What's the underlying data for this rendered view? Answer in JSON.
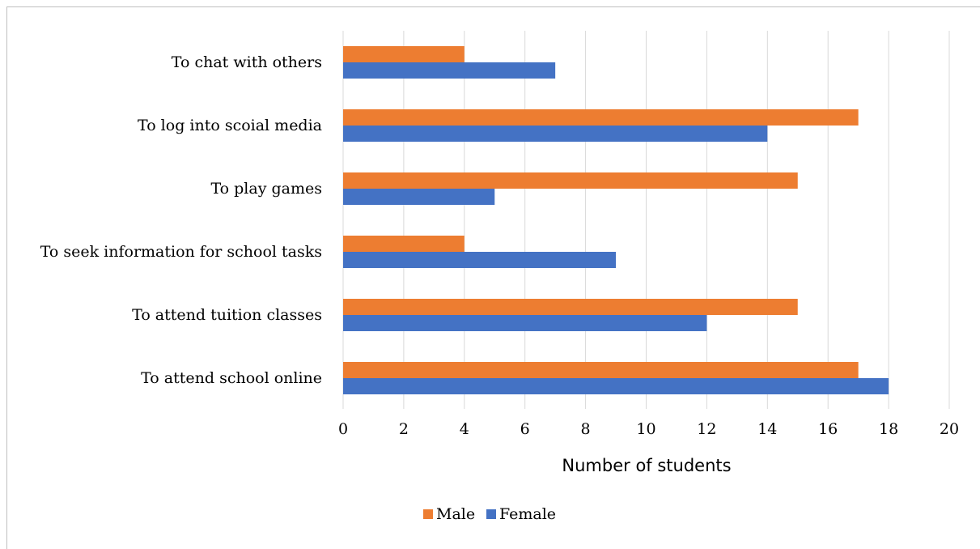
{
  "chart_data": {
    "type": "bar",
    "orientation": "horizontal",
    "categories": [
      "To chat with others",
      "To log into scoial media",
      "To play games",
      "To seek information for school tasks",
      "To attend tuition classes",
      "To attend school online"
    ],
    "series": [
      {
        "name": "Male",
        "color": "#ED7D31",
        "values": [
          4,
          17,
          15,
          4,
          15,
          17
        ]
      },
      {
        "name": "Female",
        "color": "#4472C4",
        "values": [
          7,
          14,
          5,
          9,
          12,
          18
        ]
      }
    ],
    "xlabel": "Number of students",
    "ylabel": "",
    "xlim": [
      0,
      20
    ],
    "xticks": [
      "0",
      "2",
      "4",
      "6",
      "8",
      "10",
      "12",
      "14",
      "16",
      "18",
      "20"
    ],
    "grid": "vertical",
    "legend_position": "bottom"
  }
}
